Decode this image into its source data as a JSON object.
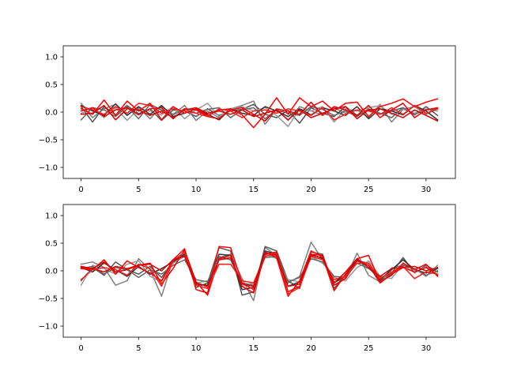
{
  "chart_data": [
    {
      "type": "line",
      "title": "",
      "xlabel": "",
      "ylabel": "",
      "xlim": [
        -1.55,
        32.55
      ],
      "ylim": [
        -1.2,
        1.2
      ],
      "xticks": [
        0,
        5,
        10,
        15,
        20,
        25,
        30
      ],
      "yticks": [
        -1.0,
        -0.5,
        0.0,
        0.5,
        1.0
      ],
      "xtick_labels": [
        "0",
        "5",
        "10",
        "15",
        "20",
        "25",
        "30"
      ],
      "ytick_labels": [
        "−1.0",
        "−0.5",
        "0.0",
        "0.5",
        "1.0"
      ],
      "grid": false,
      "series": [
        {
          "color": "#808080",
          "values": [
            0.16,
            -0.1,
            0.06,
            0.14,
            -0.05,
            0.08,
            -0.12,
            0.1,
            -0.04,
            0.12,
            -0.15,
            0.02,
            -0.1,
            0.06,
            0.12,
            0.2,
            -0.22,
            0.05,
            -0.15,
            0.1,
            0.02,
            -0.05,
            0.08,
            -0.02,
            0.04,
            -0.1,
            0.14,
            -0.18,
            0.05,
            0.1,
            -0.04,
            0.06
          ]
        },
        {
          "color": "#555555",
          "values": [
            0.1,
            -0.18,
            0.1,
            -0.05,
            0.12,
            -0.03,
            0.06,
            -0.15,
            0.04,
            0.02,
            -0.08,
            0.06,
            -0.06,
            0.02,
            0.05,
            0.14,
            -0.04,
            -0.1,
            0.03,
            -0.2,
            0.08,
            -0.02,
            -0.08,
            0.1,
            -0.06,
            0.04,
            -0.04,
            0.02,
            0.08,
            -0.05,
            0.1,
            -0.06
          ]
        },
        {
          "color": "#999999",
          "values": [
            -0.02,
            0.05,
            -0.1,
            0.08,
            -0.15,
            0.06,
            0.02,
            -0.05,
            0.1,
            -0.12,
            0.04,
            0.16,
            -0.08,
            0.06,
            0.1,
            0.02,
            0.08,
            -0.06,
            -0.26,
            0.05,
            0.02,
            0.1,
            -0.18,
            0.06,
            0.02,
            0.08,
            0.12,
            -0.04,
            0.05,
            -0.02,
            0.06,
            0.02
          ]
        },
        {
          "color": "#333333",
          "values": [
            0.12,
            0.02,
            -0.06,
            0.15,
            -0.06,
            0.1,
            -0.04,
            0.12,
            -0.08,
            -0.02,
            0.06,
            -0.04,
            -0.14,
            0.06,
            -0.02,
            -0.06,
            0.1,
            0.02,
            -0.08,
            0.06,
            -0.05,
            0.08,
            0.02,
            -0.06,
            0.1,
            -0.12,
            0.06,
            0.02,
            -0.05,
            0.12,
            0.02,
            -0.14
          ]
        },
        {
          "color": "#666666",
          "values": [
            -0.14,
            0.08,
            0.04,
            -0.08,
            0.1,
            -0.12,
            0.14,
            0.04,
            -0.05,
            0.06,
            -0.02,
            0.05,
            0.08,
            -0.1,
            0.04,
            0.08,
            -0.12,
            0.04,
            -0.02,
            -0.06,
            0.1,
            0.05,
            -0.06,
            0.02,
            -0.08,
            0.06,
            -0.02,
            -0.1,
            0.08,
            -0.04,
            0.04,
            0.06
          ]
        },
        {
          "color": "#ff0000",
          "values": [
            0.06,
            -0.04,
            0.22,
            -0.06,
            0.2,
            0.02,
            0.16,
            -0.14,
            0.1,
            -0.02,
            0.06,
            -0.06,
            0.04,
            0.06,
            -0.05,
            -0.28,
            -0.04,
            0.26,
            -0.04,
            0.26,
            0.1,
            0.2,
            0.02,
            0.16,
            0.18,
            -0.08,
            0.1,
            0.16,
            0.24,
            0.1,
            0.18,
            0.24
          ]
        },
        {
          "color": "#ee0000",
          "values": [
            0.02,
            0.08,
            -0.08,
            0.04,
            0.08,
            -0.05,
            0.06,
            0.08,
            -0.12,
            0.06,
            0.04,
            -0.08,
            -0.12,
            0.04,
            0.08,
            -0.04,
            -0.16,
            0.06,
            0.02,
            -0.04,
            0.18,
            -0.06,
            0.1,
            0.04,
            -0.06,
            0.12,
            -0.1,
            0.04,
            0.16,
            -0.1,
            0.04,
            0.08
          ]
        },
        {
          "color": "#ff1a1a",
          "values": [
            0.1,
            0.04,
            -0.04,
            0.1,
            -0.02,
            0.16,
            0.12,
            -0.02,
            0.06,
            0.02,
            -0.02,
            -0.08,
            0.06,
            0.02,
            -0.1,
            0.02,
            0.04,
            -0.02,
            0.06,
            0.02,
            -0.06,
            0.08,
            -0.14,
            -0.04,
            0.04,
            0.02,
            -0.04,
            0.08,
            -0.04,
            0.12,
            -0.02,
            0.06
          ]
        },
        {
          "color": "#dd0000",
          "values": [
            -0.04,
            -0.02,
            0.12,
            -0.14,
            0.06,
            0.04,
            -0.06,
            0.02,
            -0.1,
            0.04,
            0.08,
            -0.02,
            0.02,
            -0.04,
            0.04,
            -0.08,
            -0.02,
            0.04,
            -0.14,
            0.04,
            -0.1,
            -0.02,
            0.06,
            0.1,
            -0.12,
            0.04,
            0.06,
            -0.02,
            -0.1,
            0.04,
            -0.06,
            -0.16
          ]
        }
      ]
    },
    {
      "type": "line",
      "title": "",
      "xlabel": "",
      "ylabel": "",
      "xlim": [
        -1.55,
        32.55
      ],
      "ylim": [
        -1.2,
        1.2
      ],
      "xticks": [
        0,
        5,
        10,
        15,
        20,
        25,
        30
      ],
      "yticks": [
        -1.0,
        -0.5,
        0.0,
        0.5,
        1.0
      ],
      "xtick_labels": [
        "0",
        "5",
        "10",
        "15",
        "20",
        "25",
        "30"
      ],
      "ytick_labels": [
        "−1.0",
        "−0.5",
        "0.0",
        "0.5",
        "1.0"
      ],
      "grid": false,
      "series": [
        {
          "color": "#808080",
          "values": [
            0.12,
            0.16,
            0.06,
            -0.26,
            -0.18,
            0.22,
            0.02,
            -0.46,
            0.2,
            0.32,
            -0.2,
            -0.3,
            0.24,
            0.3,
            -0.14,
            -0.54,
            0.42,
            0.28,
            -0.22,
            -0.1,
            0.52,
            0.2,
            -0.2,
            -0.14,
            0.32,
            -0.08,
            -0.2,
            0.05,
            0.1,
            0.04,
            -0.1,
            0.1
          ]
        },
        {
          "color": "#555555",
          "values": [
            -0.18,
            0.06,
            -0.08,
            0.16,
            0.02,
            -0.06,
            0.08,
            -0.12,
            0.18,
            0.28,
            -0.3,
            -0.22,
            0.42,
            0.36,
            -0.44,
            -0.38,
            0.44,
            0.36,
            -0.18,
            -0.32,
            0.34,
            0.3,
            -0.32,
            -0.06,
            0.18,
            0.14,
            -0.18,
            -0.04,
            0.24,
            -0.04,
            0.1,
            -0.02
          ]
        },
        {
          "color": "#999999",
          "values": [
            -0.26,
            0.1,
            0.04,
            -0.06,
            0.12,
            0.18,
            -0.1,
            -0.2,
            0.14,
            0.26,
            -0.22,
            -0.18,
            0.2,
            0.22,
            -0.28,
            -0.22,
            0.3,
            0.22,
            -0.16,
            -0.2,
            0.26,
            0.14,
            -0.12,
            -0.18,
            0.06,
            0.18,
            -0.1,
            -0.14,
            0.12,
            -0.04,
            0.08,
            -0.06
          ]
        },
        {
          "color": "#333333",
          "values": [
            0.06,
            -0.02,
            0.14,
            0.02,
            -0.1,
            0.08,
            -0.06,
            0.04,
            0.16,
            0.3,
            -0.24,
            -0.26,
            0.3,
            0.28,
            -0.34,
            -0.3,
            0.36,
            0.3,
            -0.28,
            -0.2,
            0.3,
            0.22,
            -0.22,
            -0.08,
            0.2,
            0.06,
            -0.16,
            0.02,
            0.2,
            0.02,
            -0.04,
            0.04
          ]
        },
        {
          "color": "#666666",
          "values": [
            0.04,
            0.08,
            -0.06,
            0.06,
            0.02,
            -0.12,
            0.02,
            -0.06,
            0.1,
            0.2,
            -0.16,
            -0.2,
            0.26,
            0.2,
            -0.22,
            -0.26,
            0.24,
            0.26,
            -0.2,
            -0.12,
            0.22,
            0.16,
            -0.1,
            -0.12,
            0.14,
            0.04,
            -0.12,
            -0.04,
            0.1,
            0.04,
            -0.08,
            0.0
          ]
        },
        {
          "color": "#ff0000",
          "values": [
            0.04,
            0.02,
            0.2,
            -0.06,
            0.18,
            0.06,
            -0.04,
            -0.18,
            0.2,
            0.4,
            -0.34,
            -0.4,
            0.44,
            0.42,
            -0.22,
            -0.34,
            0.34,
            0.24,
            -0.46,
            -0.18,
            0.36,
            0.26,
            -0.36,
            -0.06,
            0.22,
            0.28,
            -0.2,
            -0.08,
            0.14,
            0.02,
            0.12,
            -0.1
          ]
        },
        {
          "color": "#ee0000",
          "values": [
            0.06,
            0.04,
            -0.02,
            0.08,
            0.04,
            0.1,
            0.14,
            -0.24,
            0.04,
            0.38,
            -0.2,
            -0.44,
            0.22,
            0.28,
            -0.28,
            -0.4,
            0.3,
            0.34,
            -0.38,
            -0.28,
            0.3,
            0.28,
            -0.26,
            -0.14,
            0.18,
            0.1,
            -0.22,
            -0.06,
            0.06,
            -0.02,
            0.06,
            -0.08
          ]
        },
        {
          "color": "#ff1a1a",
          "values": [
            -0.16,
            0.02,
            0.06,
            0.02,
            -0.08,
            0.12,
            0.04,
            -0.28,
            0.18,
            0.34,
            -0.26,
            -0.32,
            0.12,
            0.12,
            -0.18,
            -0.22,
            0.26,
            0.32,
            -0.42,
            -0.3,
            0.26,
            0.2,
            -0.16,
            -0.1,
            0.14,
            0.14,
            -0.14,
            -0.02,
            0.08,
            -0.14,
            -0.02,
            -0.06
          ]
        },
        {
          "color": "#dd0000",
          "values": [
            0.08,
            0.04,
            0.16,
            -0.02,
            0.02,
            0.1,
            0.12,
            0.0,
            0.2,
            0.26,
            -0.22,
            -0.28,
            0.2,
            0.24,
            -0.24,
            -0.28,
            0.32,
            0.28,
            -0.28,
            -0.24,
            0.28,
            0.24,
            -0.22,
            -0.02,
            0.22,
            0.06,
            -0.1,
            0.04,
            0.06,
            0.08,
            0.0,
            0.06
          ]
        }
      ]
    }
  ]
}
